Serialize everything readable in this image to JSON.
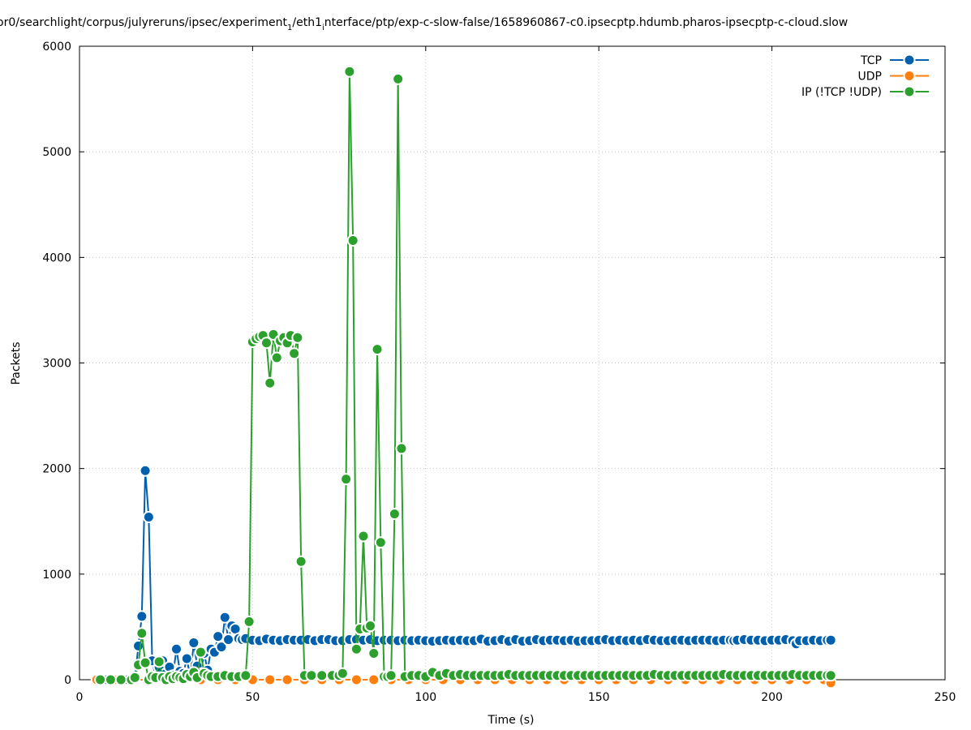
{
  "chart_data": {
    "type": "line",
    "title": "or0/searchlight/corpus/julyreruns/ipsec/experiment",
    "title_sub": "1",
    "title_after_sub": "/eth1",
    "title_sub2": "i",
    "title_rest": "nterface/ptp/exp-c-slow-false/1658960867-c0.ipsecptp.hdumb.pharos-ipsecptp-c-cloud.slow",
    "xlabel": "Time (s)",
    "ylabel": "Packets",
    "xlim": [
      0,
      250
    ],
    "ylim": [
      0,
      6000
    ],
    "x_ticks": [
      "0",
      "50",
      "100",
      "150",
      "200",
      "250"
    ],
    "y_ticks": [
      "0",
      "1000",
      "2000",
      "3000",
      "4000",
      "5000",
      "6000"
    ],
    "grid": true,
    "legend_position": "top-right",
    "series": [
      {
        "name": "TCP",
        "color": "#0060ad",
        "points": [
          [
            5,
            0
          ],
          [
            8,
            0
          ],
          [
            11,
            0
          ],
          [
            14,
            0
          ],
          [
            16,
            10
          ],
          [
            17,
            320
          ],
          [
            18,
            600
          ],
          [
            19,
            1980
          ],
          [
            20,
            1540
          ],
          [
            21,
            180
          ],
          [
            22,
            20
          ],
          [
            23,
            120
          ],
          [
            24,
            180
          ],
          [
            25,
            60
          ],
          [
            26,
            120
          ],
          [
            27,
            40
          ],
          [
            28,
            290
          ],
          [
            29,
            80
          ],
          [
            30,
            60
          ],
          [
            31,
            200
          ],
          [
            32,
            20
          ],
          [
            33,
            350
          ],
          [
            34,
            130
          ],
          [
            35,
            60
          ],
          [
            36,
            250
          ],
          [
            37,
            90
          ],
          [
            38,
            290
          ],
          [
            39,
            260
          ],
          [
            40,
            410
          ],
          [
            41,
            310
          ],
          [
            42,
            590
          ],
          [
            43,
            380
          ],
          [
            44,
            510
          ],
          [
            45,
            480
          ],
          [
            46,
            390
          ],
          [
            47,
            380
          ],
          [
            48,
            390
          ],
          [
            50,
            375
          ],
          [
            52,
            370
          ],
          [
            54,
            385
          ],
          [
            56,
            375
          ],
          [
            58,
            370
          ],
          [
            60,
            380
          ],
          [
            62,
            375
          ],
          [
            64,
            375
          ],
          [
            66,
            380
          ],
          [
            68,
            370
          ],
          [
            70,
            380
          ],
          [
            72,
            380
          ],
          [
            74,
            370
          ],
          [
            76,
            370
          ],
          [
            78,
            380
          ],
          [
            80,
            380
          ],
          [
            82,
            375
          ],
          [
            84,
            380
          ],
          [
            86,
            370
          ],
          [
            88,
            375
          ],
          [
            90,
            375
          ],
          [
            92,
            370
          ],
          [
            94,
            375
          ],
          [
            96,
            370
          ],
          [
            98,
            375
          ],
          [
            100,
            370
          ],
          [
            102,
            365
          ],
          [
            104,
            370
          ],
          [
            106,
            375
          ],
          [
            108,
            370
          ],
          [
            110,
            375
          ],
          [
            112,
            370
          ],
          [
            114,
            370
          ],
          [
            116,
            385
          ],
          [
            118,
            365
          ],
          [
            120,
            370
          ],
          [
            122,
            380
          ],
          [
            124,
            365
          ],
          [
            126,
            380
          ],
          [
            128,
            365
          ],
          [
            130,
            370
          ],
          [
            132,
            380
          ],
          [
            134,
            370
          ],
          [
            136,
            375
          ],
          [
            138,
            375
          ],
          [
            140,
            370
          ],
          [
            142,
            375
          ],
          [
            144,
            365
          ],
          [
            146,
            370
          ],
          [
            148,
            370
          ],
          [
            150,
            375
          ],
          [
            152,
            380
          ],
          [
            154,
            370
          ],
          [
            156,
            375
          ],
          [
            158,
            370
          ],
          [
            160,
            375
          ],
          [
            162,
            370
          ],
          [
            164,
            380
          ],
          [
            166,
            375
          ],
          [
            168,
            370
          ],
          [
            170,
            370
          ],
          [
            172,
            375
          ],
          [
            174,
            375
          ],
          [
            176,
            370
          ],
          [
            178,
            375
          ],
          [
            180,
            375
          ],
          [
            182,
            375
          ],
          [
            184,
            370
          ],
          [
            186,
            375
          ],
          [
            188,
            375
          ],
          [
            189,
            370
          ],
          [
            190,
            375
          ],
          [
            192,
            380
          ],
          [
            194,
            375
          ],
          [
            196,
            375
          ],
          [
            198,
            370
          ],
          [
            200,
            375
          ],
          [
            202,
            375
          ],
          [
            204,
            380
          ],
          [
            206,
            370
          ],
          [
            207,
            340
          ],
          [
            208,
            370
          ],
          [
            210,
            370
          ],
          [
            212,
            375
          ],
          [
            214,
            370
          ],
          [
            216,
            375
          ],
          [
            217,
            375
          ]
        ]
      },
      {
        "name": "UDP",
        "color": "#ff7f0e",
        "points": [
          [
            5,
            0
          ],
          [
            10,
            0
          ],
          [
            15,
            0
          ],
          [
            20,
            0
          ],
          [
            25,
            0
          ],
          [
            30,
            0
          ],
          [
            35,
            0
          ],
          [
            40,
            0
          ],
          [
            45,
            0
          ],
          [
            50,
            0
          ],
          [
            55,
            0
          ],
          [
            60,
            0
          ],
          [
            65,
            0
          ],
          [
            70,
            0
          ],
          [
            75,
            0
          ],
          [
            80,
            0
          ],
          [
            85,
            0
          ],
          [
            90,
            0
          ],
          [
            95,
            0
          ],
          [
            100,
            0
          ],
          [
            105,
            0
          ],
          [
            110,
            0
          ],
          [
            115,
            0
          ],
          [
            120,
            0
          ],
          [
            125,
            0
          ],
          [
            130,
            0
          ],
          [
            135,
            0
          ],
          [
            140,
            0
          ],
          [
            145,
            0
          ],
          [
            150,
            0
          ],
          [
            155,
            0
          ],
          [
            160,
            0
          ],
          [
            165,
            0
          ],
          [
            170,
            0
          ],
          [
            175,
            0
          ],
          [
            180,
            0
          ],
          [
            185,
            0
          ],
          [
            190,
            0
          ],
          [
            195,
            0
          ],
          [
            200,
            0
          ],
          [
            205,
            0
          ],
          [
            210,
            0
          ],
          [
            215,
            0
          ],
          [
            217,
            -30
          ]
        ]
      },
      {
        "name": "IP (!TCP  !UDP)",
        "color": "#2ca02c",
        "points": [
          [
            6,
            0
          ],
          [
            9,
            0
          ],
          [
            12,
            0
          ],
          [
            15,
            0
          ],
          [
            16,
            20
          ],
          [
            17,
            140
          ],
          [
            18,
            440
          ],
          [
            19,
            160
          ],
          [
            20,
            0
          ],
          [
            21,
            30
          ],
          [
            22,
            20
          ],
          [
            23,
            170
          ],
          [
            24,
            20
          ],
          [
            25,
            0
          ],
          [
            26,
            30
          ],
          [
            27,
            10
          ],
          [
            28,
            30
          ],
          [
            29,
            20
          ],
          [
            30,
            10
          ],
          [
            31,
            50
          ],
          [
            32,
            30
          ],
          [
            33,
            70
          ],
          [
            34,
            20
          ],
          [
            35,
            260
          ],
          [
            36,
            60
          ],
          [
            37,
            40
          ],
          [
            38,
            30
          ],
          [
            40,
            30
          ],
          [
            42,
            40
          ],
          [
            44,
            30
          ],
          [
            46,
            30
          ],
          [
            48,
            40
          ],
          [
            49,
            550
          ],
          [
            50,
            3200
          ],
          [
            51,
            3230
          ],
          [
            52,
            3250
          ],
          [
            53,
            3260
          ],
          [
            54,
            3190
          ],
          [
            55,
            2810
          ],
          [
            56,
            3270
          ],
          [
            57,
            3050
          ],
          [
            58,
            3210
          ],
          [
            59,
            3240
          ],
          [
            60,
            3190
          ],
          [
            61,
            3260
          ],
          [
            62,
            3090
          ],
          [
            63,
            3240
          ],
          [
            64,
            1120
          ],
          [
            65,
            40
          ],
          [
            67,
            40
          ],
          [
            70,
            40
          ],
          [
            73,
            40
          ],
          [
            75,
            40
          ],
          [
            76,
            60
          ],
          [
            77,
            1900
          ],
          [
            78,
            5760
          ],
          [
            79,
            4160
          ],
          [
            80,
            290
          ],
          [
            81,
            480
          ],
          [
            82,
            1360
          ],
          [
            83,
            490
          ],
          [
            84,
            510
          ],
          [
            85,
            250
          ],
          [
            86,
            3130
          ],
          [
            87,
            1300
          ],
          [
            88,
            30
          ],
          [
            89,
            30
          ],
          [
            90,
            40
          ],
          [
            91,
            1570
          ],
          [
            92,
            5690
          ],
          [
            93,
            2190
          ],
          [
            94,
            30
          ],
          [
            96,
            40
          ],
          [
            98,
            40
          ],
          [
            100,
            30
          ],
          [
            102,
            70
          ],
          [
            104,
            40
          ],
          [
            106,
            60
          ],
          [
            108,
            40
          ],
          [
            110,
            50
          ],
          [
            112,
            40
          ],
          [
            114,
            40
          ],
          [
            116,
            40
          ],
          [
            118,
            40
          ],
          [
            120,
            40
          ],
          [
            122,
            40
          ],
          [
            124,
            50
          ],
          [
            126,
            40
          ],
          [
            128,
            40
          ],
          [
            130,
            40
          ],
          [
            132,
            40
          ],
          [
            134,
            40
          ],
          [
            136,
            40
          ],
          [
            138,
            40
          ],
          [
            140,
            40
          ],
          [
            142,
            40
          ],
          [
            144,
            40
          ],
          [
            146,
            40
          ],
          [
            148,
            40
          ],
          [
            150,
            40
          ],
          [
            152,
            40
          ],
          [
            154,
            40
          ],
          [
            156,
            40
          ],
          [
            158,
            40
          ],
          [
            160,
            40
          ],
          [
            162,
            40
          ],
          [
            164,
            40
          ],
          [
            166,
            50
          ],
          [
            168,
            40
          ],
          [
            170,
            40
          ],
          [
            172,
            40
          ],
          [
            174,
            40
          ],
          [
            176,
            40
          ],
          [
            178,
            40
          ],
          [
            180,
            40
          ],
          [
            182,
            40
          ],
          [
            184,
            40
          ],
          [
            186,
            50
          ],
          [
            188,
            40
          ],
          [
            190,
            40
          ],
          [
            192,
            40
          ],
          [
            194,
            40
          ],
          [
            196,
            40
          ],
          [
            198,
            40
          ],
          [
            200,
            40
          ],
          [
            202,
            40
          ],
          [
            204,
            40
          ],
          [
            206,
            50
          ],
          [
            208,
            40
          ],
          [
            210,
            40
          ],
          [
            212,
            40
          ],
          [
            214,
            40
          ],
          [
            216,
            40
          ],
          [
            217,
            40
          ]
        ]
      }
    ]
  }
}
